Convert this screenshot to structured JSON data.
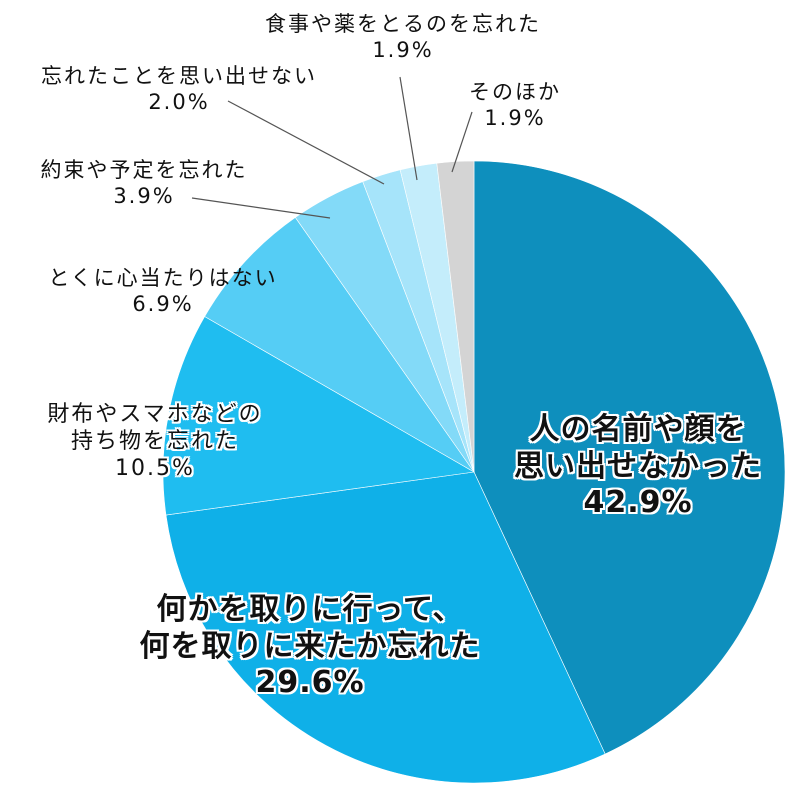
{
  "chart_data": {
    "type": "pie",
    "title": "",
    "start_angle": "12 o'clock",
    "direction": "clockwise",
    "categories": [
      "人の名前や顔を思い出せなかった",
      "何かを取りに行って、何を取りに来たか忘れた",
      "財布やスマホなどの持ち物を忘れた",
      "とくに心当たりはない",
      "約束や予定を忘れた",
      "忘れたことを思い出せない",
      "食事や薬をとるのを忘れた",
      "そのほか"
    ],
    "values": [
      42.9,
      29.6,
      10.5,
      6.9,
      3.9,
      2.0,
      1.9,
      1.9
    ],
    "unit": "%",
    "colors": [
      "#0e8fbd",
      "#0fb0e8",
      "#1fbdf0",
      "#55cdf5",
      "#83daf8",
      "#a6e4fa",
      "#c4edfb",
      "#d4d4d4"
    ],
    "legend": "none (labels placed on/around slices)"
  },
  "labels": {
    "s0": {
      "line1": "人の名前や顔を",
      "line2": "思い出せなかった",
      "pct": "42.9%"
    },
    "s1": {
      "line1": "何かを取りに行って、",
      "line2": "何を取りに来たか忘れた",
      "pct": "29.6%"
    },
    "s2": {
      "line1": "財布やスマホなどの",
      "line2": "持ち物を忘れた",
      "pct": "10.5%"
    },
    "s3": {
      "line1": "とくに心当たりはない",
      "pct": "6.9%"
    },
    "s4": {
      "line1": "約束や予定を忘れた",
      "pct": "3.9%"
    },
    "s5": {
      "line1": "忘れたことを思い出せない",
      "pct": "2.0%"
    },
    "s6": {
      "line1": "食事や薬をとるのを忘れた",
      "pct": "1.9%"
    },
    "s7": {
      "line1": "そのほか",
      "pct": "1.9%"
    }
  }
}
